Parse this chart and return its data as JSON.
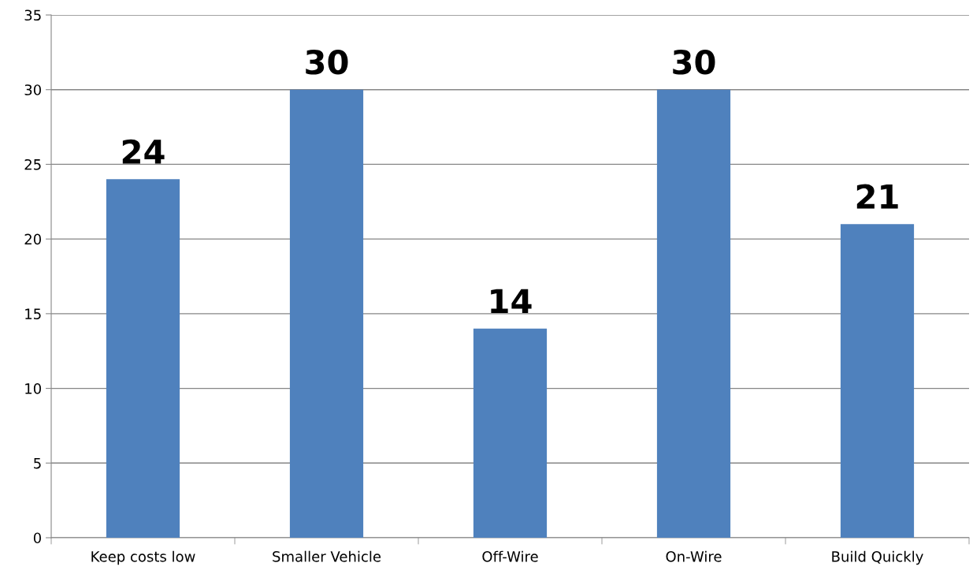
{
  "chart_data": {
    "type": "bar",
    "categories": [
      "Keep costs low",
      "Smaller Vehicle",
      "Off-Wire",
      "On-Wire",
      "Build Quickly"
    ],
    "values": [
      24,
      30,
      14,
      30,
      21
    ],
    "color": "#4f81bd",
    "ylim": [
      0,
      35
    ],
    "yticks": [
      0,
      5,
      10,
      15,
      20,
      25,
      30,
      35
    ],
    "grid": "y",
    "data_labels": true
  }
}
